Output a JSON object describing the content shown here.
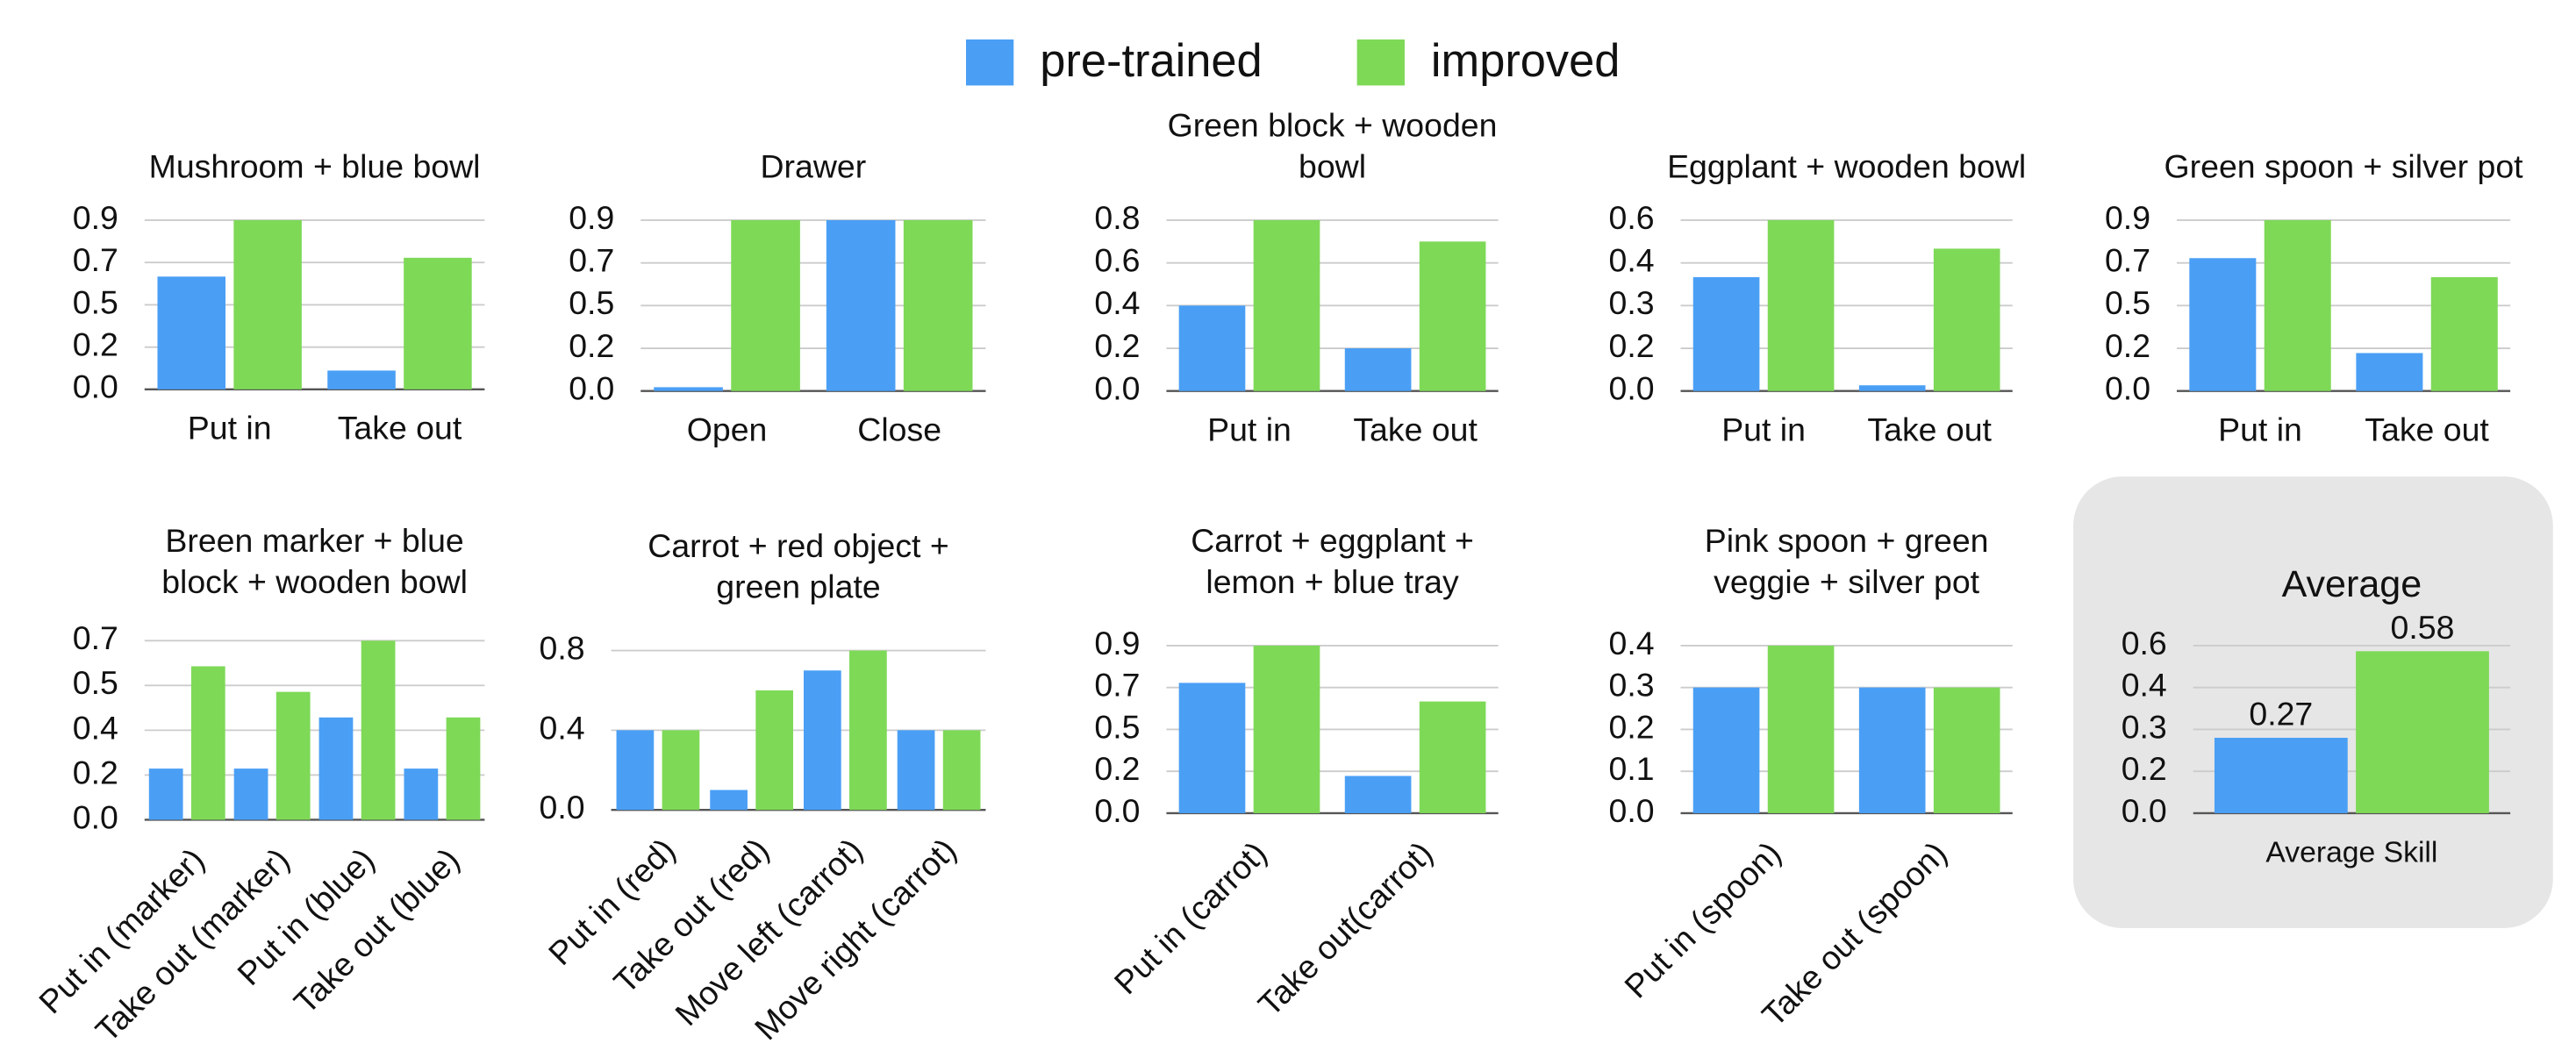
{
  "legend": {
    "items": [
      {
        "name": "pre-trained",
        "color": "#4a9ff5"
      },
      {
        "name": "improved",
        "color": "#7ed957"
      }
    ]
  },
  "chart_data": [
    {
      "type": "bar",
      "title": "Mushroom + blue bowl",
      "categories": [
        "Put in",
        "Take out"
      ],
      "series": [
        {
          "values": [
            0.6,
            0.1
          ]
        },
        {
          "values": [
            0.9,
            0.7
          ]
        }
      ],
      "ylim": [
        0,
        0.9
      ],
      "yticks": [
        {
          "value": 0,
          "label": "0.0"
        },
        {
          "value": 0.225,
          "label": "0.2"
        },
        {
          "value": 0.45,
          "label": "0.5"
        },
        {
          "value": 0.675,
          "label": "0.7"
        },
        0.9
      ]
    },
    {
      "type": "bar",
      "title": "Drawer",
      "categories": [
        "Open",
        "Close"
      ],
      "series": [
        {
          "values": [
            0.02,
            0.9
          ]
        },
        {
          "values": [
            0.9,
            0.9
          ]
        }
      ],
      "ylim": [
        0,
        0.9
      ],
      "yticks": [
        {
          "value": 0,
          "label": "0.0"
        },
        {
          "value": 0.225,
          "label": "0.2"
        },
        {
          "value": 0.45,
          "label": "0.5"
        },
        {
          "value": 0.675,
          "label": "0.7"
        },
        0.9
      ]
    },
    {
      "type": "bar",
      "title": "Green block + wooden bowl",
      "categories": [
        "Put in",
        "Take out"
      ],
      "series": [
        {
          "values": [
            0.4,
            0.2
          ]
        },
        {
          "values": [
            0.8,
            0.7
          ]
        }
      ],
      "ylim": [
        0,
        0.8
      ],
      "yticks": [
        {
          "value": 0,
          "label": "0.0"
        },
        0.2,
        0.4,
        0.6,
        0.8
      ]
    },
    {
      "type": "bar",
      "title": "Eggplant + wooden bowl",
      "categories": [
        "Put in",
        "Take out"
      ],
      "series": [
        {
          "values": [
            0.4,
            0.02
          ]
        },
        {
          "values": [
            0.6,
            0.5
          ]
        }
      ],
      "ylim": [
        0,
        0.6
      ],
      "yticks": [
        {
          "value": 0,
          "label": "0.0"
        },
        {
          "value": 0.15,
          "label": "0.2"
        },
        0.3,
        {
          "value": 0.45,
          "label": "0.4"
        },
        0.6
      ]
    },
    {
      "type": "bar",
      "title": "Green spoon + silver pot",
      "categories": [
        "Put in",
        "Take out"
      ],
      "series": [
        {
          "values": [
            0.7,
            0.2
          ]
        },
        {
          "values": [
            0.9,
            0.6
          ]
        }
      ],
      "ylim": [
        0,
        0.9
      ],
      "yticks": [
        {
          "value": 0,
          "label": "0.0"
        },
        {
          "value": 0.225,
          "label": "0.2"
        },
        {
          "value": 0.45,
          "label": "0.5"
        },
        {
          "value": 0.675,
          "label": "0.7"
        },
        0.9
      ]
    },
    {
      "type": "bar",
      "title": "Breen marker + blue block + wooden bowl",
      "categories": [
        "Put in (marker)",
        "Take out (marker)",
        "Put in (blue)",
        "Take out (blue)"
      ],
      "series": [
        {
          "values": [
            0.2,
            0.2,
            0.4,
            0.2
          ]
        },
        {
          "values": [
            0.6,
            0.5,
            0.7,
            0.4
          ]
        }
      ],
      "ylim": [
        0,
        0.7
      ],
      "yticks": [
        {
          "value": 0,
          "label": "0.0"
        },
        {
          "value": 0.175,
          "label": "0.2"
        },
        {
          "value": 0.35,
          "label": "0.4"
        },
        {
          "value": 0.525,
          "label": "0.5"
        },
        0.7
      ]
    },
    {
      "type": "bar",
      "title": "Carrot + red object + green plate",
      "categories": [
        "Put in (red)",
        "Take out (red)",
        "Move left (carrot)",
        "Move right (carrot)"
      ],
      "series": [
        {
          "values": [
            0.4,
            0.1,
            0.7,
            0.4
          ]
        },
        {
          "values": [
            0.4,
            0.6,
            0.8,
            0.4
          ]
        }
      ],
      "ylim": [
        0,
        0.8
      ],
      "yticks": [
        {
          "value": 0,
          "label": "0.0"
        },
        0.4,
        0.8
      ]
    },
    {
      "type": "bar",
      "title": "Carrot + eggplant + lemon + blue tray",
      "categories": [
        "Put in (carrot)",
        "Take out(carrot)"
      ],
      "series": [
        {
          "values": [
            0.7,
            0.2
          ]
        },
        {
          "values": [
            0.9,
            0.6
          ]
        }
      ],
      "ylim": [
        0,
        0.9
      ],
      "yticks": [
        {
          "value": 0,
          "label": "0.0"
        },
        {
          "value": 0.225,
          "label": "0.2"
        },
        {
          "value": 0.45,
          "label": "0.5"
        },
        {
          "value": 0.675,
          "label": "0.7"
        },
        0.9
      ]
    },
    {
      "type": "bar",
      "title": "Pink spoon + green veggie + silver pot",
      "categories": [
        "Put in (spoon)",
        "Take out (spoon)"
      ],
      "series": [
        {
          "values": [
            0.3,
            0.3
          ]
        },
        {
          "values": [
            0.4,
            0.3
          ]
        }
      ],
      "ylim": [
        0,
        0.4
      ],
      "yticks": [
        {
          "value": 0,
          "label": "0.0"
        },
        0.1,
        0.2,
        0.3,
        0.4
      ]
    },
    {
      "type": "bar",
      "title": "Average",
      "categories": [
        "Average Skill"
      ],
      "series": [
        {
          "values": [
            0.27
          ],
          "value_labels": [
            "0.27"
          ]
        },
        {
          "values": [
            0.58
          ],
          "value_labels": [
            "0.58"
          ]
        }
      ],
      "ylim": [
        0,
        0.6
      ],
      "yticks": [
        {
          "value": 0,
          "label": "0.0"
        },
        {
          "value": 0.15,
          "label": "0.2"
        },
        0.3,
        {
          "value": 0.45,
          "label": "0.4"
        },
        0.6
      ]
    }
  ]
}
